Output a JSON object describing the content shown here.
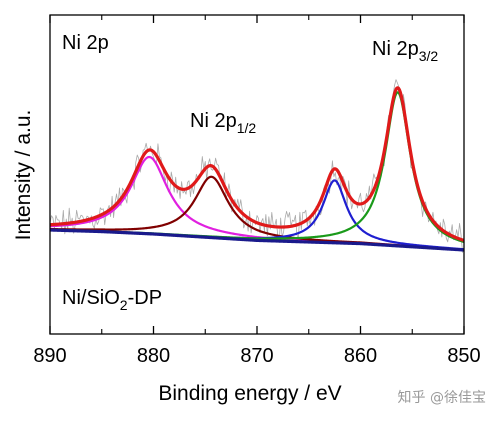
{
  "chart_data": {
    "type": "line",
    "xlabel": "Binding energy / eV",
    "ylabel": "Intensity / a.u.",
    "xlim": [
      890,
      850
    ],
    "x_ticks": [
      890,
      880,
      870,
      860,
      850
    ],
    "x_reversed": true,
    "y_ticks_shown": false,
    "grid": false,
    "annotations": {
      "panel": "Ni 2p",
      "sample_prefix": "Ni/SiO",
      "sample_sub": "2",
      "sample_suffix": "-DP",
      "peak1_main": "Ni 2p",
      "peak1_sub": "1/2",
      "peak2_main": "Ni 2p",
      "peak2_sub": "3/2"
    },
    "background": {
      "name": "background",
      "color": "#1a1a8c",
      "x": [
        890,
        885,
        880,
        875,
        870,
        865,
        860,
        855,
        850
      ],
      "y": [
        0.0,
        -0.02,
        -0.05,
        -0.09,
        -0.13,
        -0.15,
        -0.17,
        -0.21,
        -0.25
      ]
    },
    "peaks": [
      {
        "name": "p1",
        "color": "#e020e0",
        "center": 880.4,
        "height": 0.96,
        "width": 2.2
      },
      {
        "name": "p2",
        "color": "#800000",
        "center": 874.4,
        "height": 0.76,
        "width": 2.0
      },
      {
        "name": "p3",
        "color": "#1f1fd0",
        "center": 862.5,
        "height": 0.78,
        "width": 1.4
      },
      {
        "name": "p4",
        "color": "#1a9a1a",
        "center": 856.4,
        "height": 1.92,
        "width": 1.5
      }
    ],
    "envelope_color": "#e01a1a",
    "raw_color": "#aaaaaa"
  },
  "watermark": "知乎 @徐佳宝"
}
